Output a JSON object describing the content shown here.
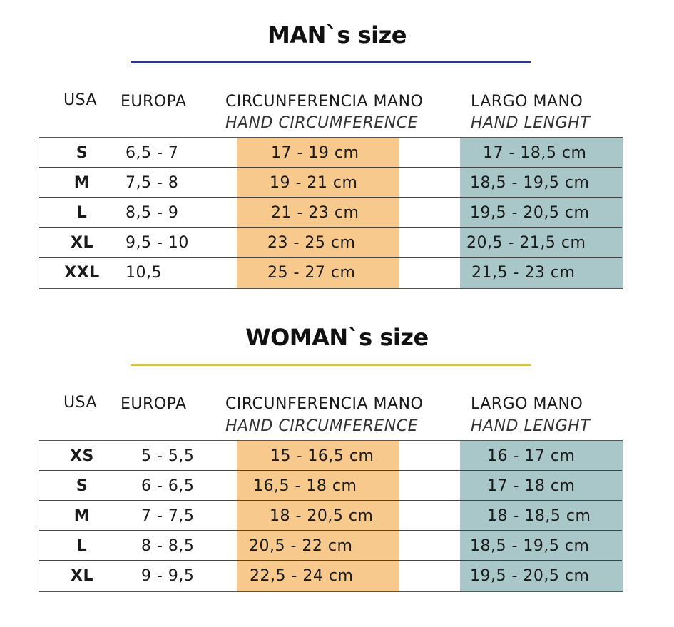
{
  "man": {
    "title": "MAN`s size",
    "headers": {
      "usa": "USA",
      "europa": "EUROPA",
      "circ": "CIRCUNFERENCIA MANO",
      "circ_en": "HAND CIRCUMFERENCE",
      "largo": "LARGO MANO",
      "largo_en": "HAND LENGHT"
    },
    "rows": [
      {
        "usa": "S",
        "europa": "6,5 - 7",
        "circ": "17 - 19 cm",
        "largo": "17  - 18,5 cm"
      },
      {
        "usa": "M",
        "europa": "7,5 - 8",
        "circ": "19 - 21 cm",
        "largo": "18,5 - 19,5 cm"
      },
      {
        "usa": "L",
        "europa": "8,5 - 9",
        "circ": "21 - 23 cm",
        "largo": "19,5 - 20,5 cm"
      },
      {
        "usa": "XL",
        "europa": "9,5 - 10",
        "circ": "23 - 25 cm",
        "largo": "20,5 - 21,5 cm"
      },
      {
        "usa": "XXL",
        "europa": "10,5",
        "circ": "25 - 27 cm",
        "largo": "21,5 - 23 cm"
      }
    ]
  },
  "woman": {
    "title": "WOMAN`s size",
    "headers": {
      "usa": "USA",
      "europa": "EUROPA",
      "circ": "CIRCUNFERENCIA MANO",
      "circ_en": "HAND CIRCUMFERENCE",
      "largo": "LARGO MANO",
      "largo_en": "HAND LENGHT"
    },
    "rows": [
      {
        "usa": "XS",
        "europa": "5 - 5,5",
        "circ": "15 - 16,5 cm",
        "largo": "16 - 17 cm"
      },
      {
        "usa": "S",
        "europa": "6 - 6,5",
        "circ": "16,5 - 18 cm",
        "largo": "17 - 18 cm"
      },
      {
        "usa": "M",
        "europa": "7 - 7,5",
        "circ": "18 - 20,5 cm",
        "largo": "18 - 18,5 cm"
      },
      {
        "usa": "L",
        "europa": "8 - 8,5",
        "circ": "20,5 - 22 cm",
        "largo": "18,5 - 19,5 cm"
      },
      {
        "usa": "XL",
        "europa": "9 - 9,5",
        "circ": "22,5 - 24 cm",
        "largo": "19,5 - 20,5 cm"
      }
    ]
  },
  "colors": {
    "man_rule": "#2e3591",
    "woman_rule": "#d7c24a",
    "circ_band": "#f7c98c",
    "largo_band": "#a9c6c9"
  }
}
